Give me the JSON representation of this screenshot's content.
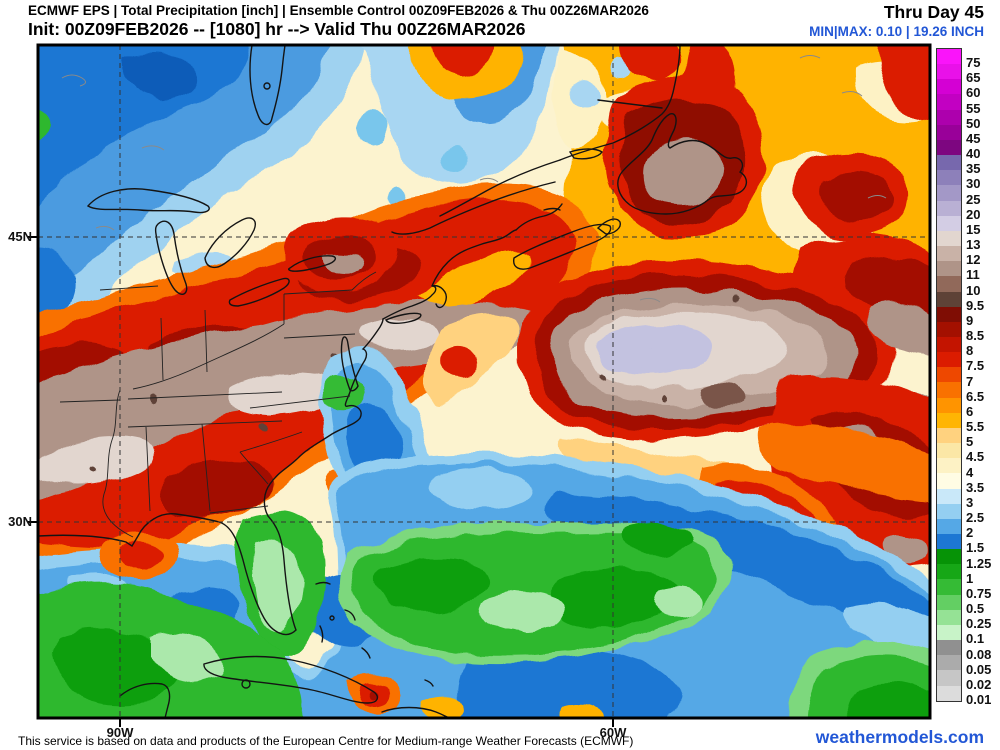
{
  "header": {
    "line1": "ECMWF EPS | Total Precipitation [inch] | Ensemble Control 00Z09FEB2026 & Thu 00Z26MAR2026",
    "line2": "Init: 00Z09FEB2026 -- [1080] hr --> Valid Thu 00Z26MAR2026",
    "thru": "Thru Day 45",
    "minmax": "MIN|MAX: 0.10 | 19.26 INCH"
  },
  "map": {
    "lat_labels": [
      {
        "text": "45N"
      },
      {
        "text": "30N"
      }
    ],
    "lon_labels": [
      {
        "text": "90W"
      },
      {
        "text": "60W"
      }
    ]
  },
  "colorbar": {
    "unit": "inch",
    "values": [
      "75",
      "65",
      "60",
      "55",
      "50",
      "45",
      "40",
      "35",
      "30",
      "25",
      "20",
      "15",
      "13",
      "12",
      "11",
      "10",
      "9.5",
      "9",
      "8.5",
      "8",
      "7.5",
      "7",
      "6.5",
      "6",
      "5.5",
      "5",
      "4.5",
      "4",
      "3.5",
      "3",
      "2.5",
      "2",
      "1.5",
      "1.25",
      "1",
      "0.75",
      "0.5",
      "0.25",
      "0.1",
      "0.08",
      "0.05",
      "0.02",
      "0.01"
    ],
    "colors": [
      "#fa14fa",
      "#e911e9",
      "#d400d4",
      "#c200c2",
      "#ad00ad",
      "#990099",
      "#7d0680",
      "#7768ad",
      "#8d80ba",
      "#a398c7",
      "#b9b0d4",
      "#d3cde4",
      "#e2d6cf",
      "#c9b2a7",
      "#af9488",
      "#91695a",
      "#5e4237",
      "#7f0d04",
      "#a31000",
      "#c31400",
      "#db1c00",
      "#ee4800",
      "#f97100",
      "#ff9400",
      "#ffb503",
      "#ffd27f",
      "#fbe7a6",
      "#fdf2c5",
      "#fffce4",
      "#c9e8f9",
      "#94cff1",
      "#55a8e6",
      "#1d77d3",
      "#069306",
      "#16a716",
      "#35bb35",
      "#63cf63",
      "#95e295",
      "#c8f3c8",
      "#909090",
      "#ababab",
      "#c6c6c6",
      "#dcdcdc"
    ]
  },
  "footer": {
    "attribution": "This service is based on data and products of the European Centre for Medium-range Weather Forecasts (ECMWF)",
    "brand": "weathermodels.com"
  },
  "theme": {
    "accent_blue": "#2257d6"
  }
}
